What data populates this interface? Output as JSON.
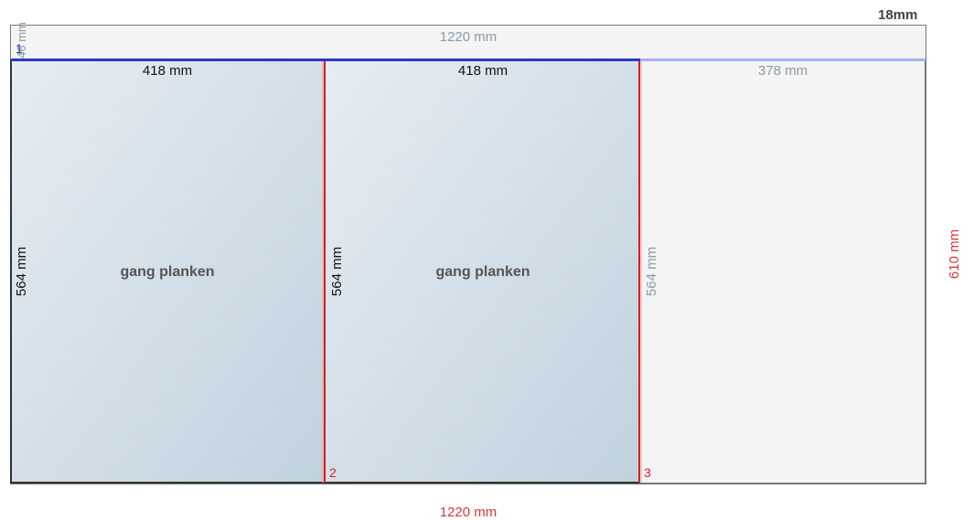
{
  "sheet": {
    "thickness_label": "18mm",
    "width_label_top": "1220 mm",
    "width_label_bottom": "1220 mm",
    "height_label": "610 mm",
    "trim_strip_label": "46 mm"
  },
  "pieces": [
    {
      "name": "gang planken",
      "width_label": "418 mm",
      "height_label": "564 mm"
    },
    {
      "name": "gang planken",
      "width_label": "418 mm",
      "height_label": "564 mm"
    }
  ],
  "offcut": {
    "width_label": "378 mm",
    "height_label": "564 mm"
  },
  "cuts": [
    {
      "number": "1",
      "color": "#2a36c9"
    },
    {
      "number": "2",
      "color": "#d61f1f"
    },
    {
      "number": "3",
      "color": "#d61f1f"
    }
  ],
  "colors": {
    "piece_fill_start": "#e6ecf2",
    "piece_fill_end": "#c0d2de",
    "offcut_fill": "#f4f4f4",
    "sheet_border": "#777777",
    "horizontal_cut": "#2a36c9",
    "vertical_cut": "#d61f1f"
  }
}
